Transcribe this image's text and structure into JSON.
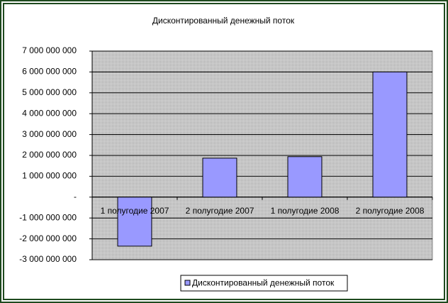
{
  "chart_data": {
    "type": "bar",
    "title": "Дисконтированный денежный поток",
    "categories": [
      "1 полугодие 2007",
      "2 полугодие 2007",
      "1 полугодие 2008",
      "2 полугодие 2008"
    ],
    "series": [
      {
        "name": "Дисконтированный денежный поток",
        "color": "#9999ff",
        "values": [
          -2350000000,
          1870000000,
          1940000000,
          6000000000
        ]
      }
    ],
    "ylim": [
      -3000000000,
      7000000000
    ],
    "yticks": [
      {
        "value": -3000000000,
        "label": "-3 000 000 000"
      },
      {
        "value": -2000000000,
        "label": "-2 000 000 000"
      },
      {
        "value": -1000000000,
        "label": "-1 000 000 000"
      },
      {
        "value": 0,
        "label": "-"
      },
      {
        "value": 1000000000,
        "label": "1 000 000 000"
      },
      {
        "value": 2000000000,
        "label": "2 000 000 000"
      },
      {
        "value": 3000000000,
        "label": "3 000 000 000"
      },
      {
        "value": 4000000000,
        "label": "4 000 000 000"
      },
      {
        "value": 5000000000,
        "label": "5 000 000 000"
      },
      {
        "value": 6000000000,
        "label": "6 000 000 000"
      },
      {
        "value": 7000000000,
        "label": "7 000 000 000"
      }
    ],
    "grid": true,
    "legend": "bottom"
  }
}
